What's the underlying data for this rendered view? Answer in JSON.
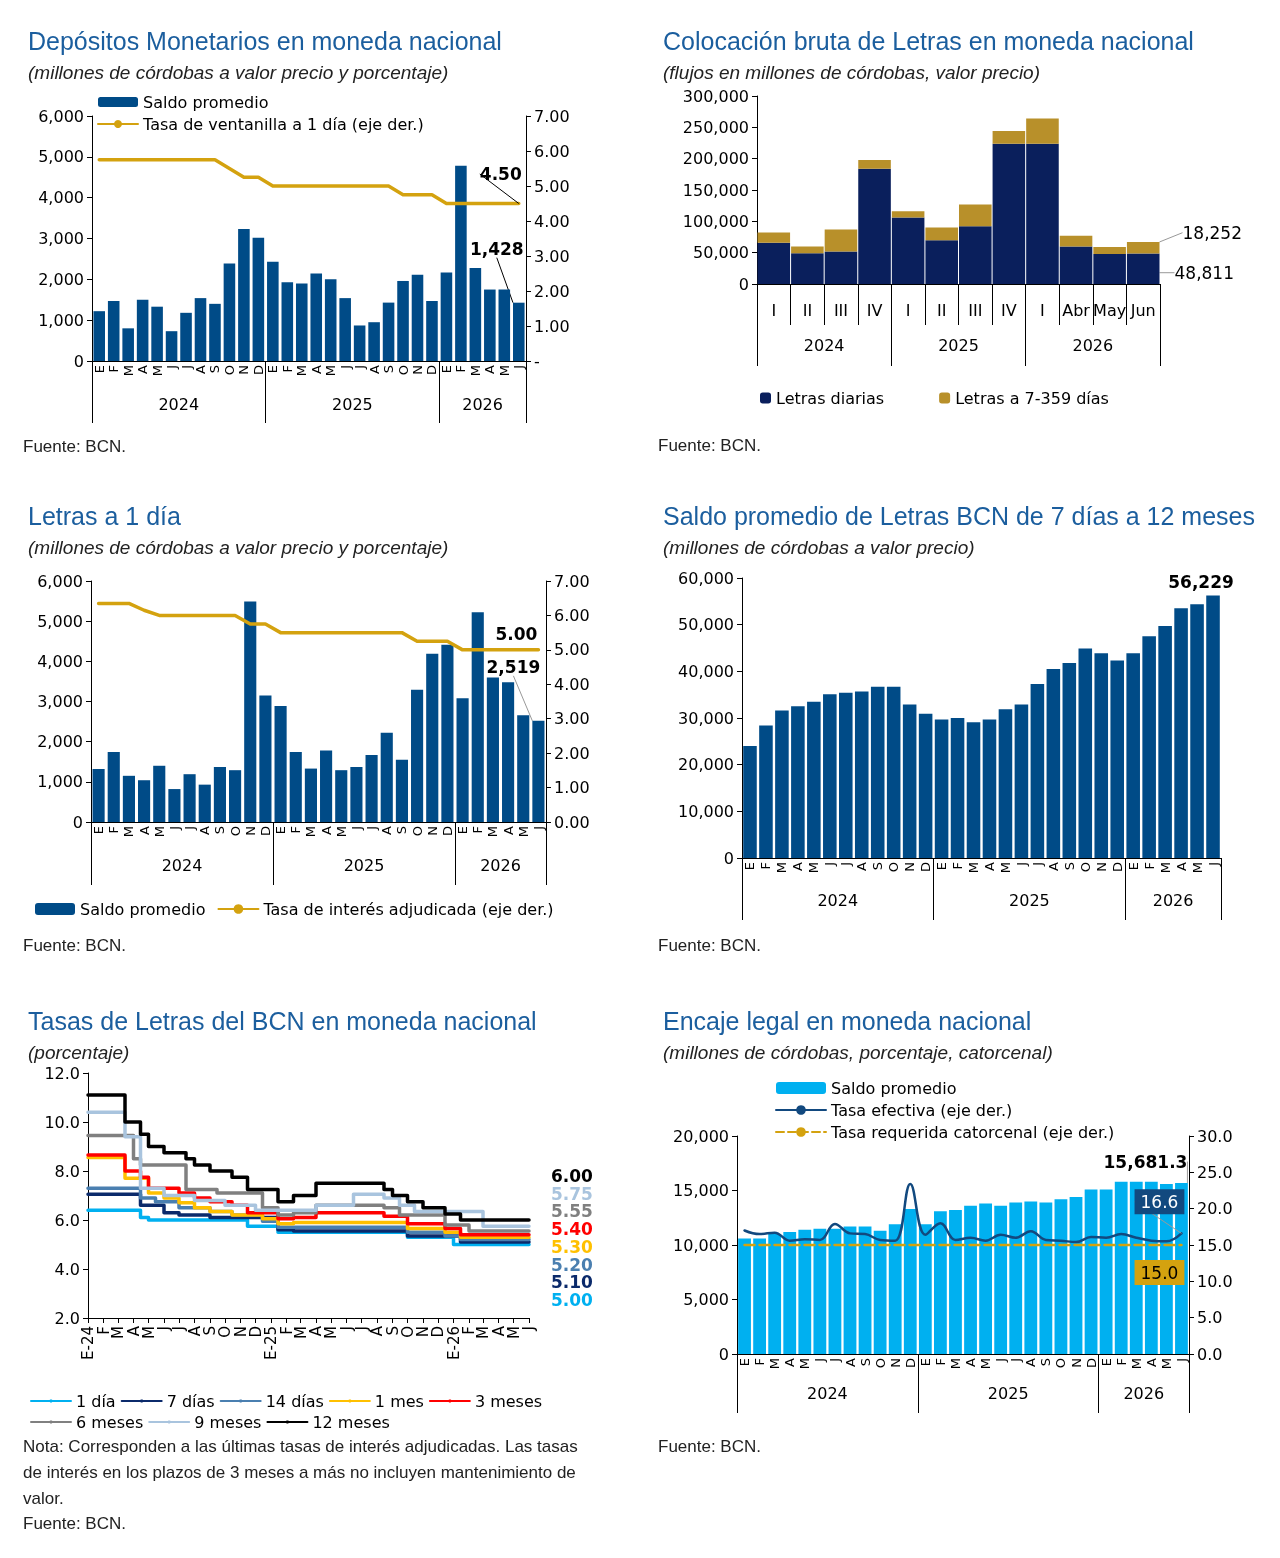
{
  "chart_data": [
    {
      "type": "bar",
      "title": "Depósitos Monetarios en moneda nacional",
      "subtitle": "(millones de córdobas a valor precio y porcentaje)",
      "categories": [
        "E",
        "F",
        "M",
        "A",
        "M",
        "J",
        "J",
        "A",
        "S",
        "O",
        "N",
        "D",
        "E",
        "F",
        "M",
        "A",
        "M",
        "J",
        "J",
        "A",
        "S",
        "O",
        "N",
        "D",
        "E",
        "F",
        "M",
        "A",
        "M",
        "J"
      ],
      "series": [
        {
          "name": "Saldo promedio",
          "color": "#004b87",
          "values": [
            1220,
            1470,
            800,
            1500,
            1330,
            730,
            1180,
            1540,
            1400,
            2390,
            3230,
            3020,
            2430,
            1930,
            1900,
            2140,
            2000,
            1540,
            870,
            950,
            1430,
            1960,
            2110,
            1470,
            2170,
            4780,
            2280,
            1750,
            1750,
            1428
          ],
          "value_labels": [
            null,
            null,
            null,
            null,
            null,
            null,
            null,
            null,
            null,
            null,
            null,
            null,
            null,
            null,
            null,
            null,
            null,
            null,
            null,
            null,
            null,
            null,
            null,
            null,
            null,
            null,
            null,
            null,
            null,
            "1,428"
          ]
        },
        {
          "name": "Tasa de ventanilla a 1 día (eje der.)",
          "type": "line",
          "axis": "y2",
          "color": "#d4a20f",
          "values": [
            5.75,
            5.75,
            5.75,
            5.75,
            5.75,
            5.75,
            5.75,
            5.75,
            5.75,
            5.5,
            5.25,
            5.25,
            5,
            5,
            5,
            5,
            5,
            5,
            5,
            5,
            5,
            4.75,
            4.75,
            4.75,
            4.5,
            4.5,
            4.5,
            4.5,
            4.5,
            4.5
          ],
          "value_labels": [
            null,
            null,
            null,
            null,
            null,
            null,
            null,
            null,
            null,
            null,
            null,
            null,
            null,
            null,
            null,
            null,
            null,
            null,
            null,
            null,
            null,
            null,
            null,
            null,
            null,
            null,
            null,
            null,
            null,
            "4.50"
          ]
        }
      ],
      "ylim": [
        0,
        6000
      ],
      "yticks": [
        {
          "value": 0,
          "label": "0"
        },
        {
          "value": 1000,
          "label": "1,000"
        },
        {
          "value": 2000,
          "label": "2,000"
        },
        {
          "value": 3000,
          "label": "3,000"
        },
        {
          "value": 4000,
          "label": "4,000"
        },
        {
          "value": 5000,
          "label": "5,000"
        },
        {
          "value": 6000,
          "label": "6,000"
        }
      ],
      "y2lim": [
        0,
        7
      ],
      "y2ticks": [
        {
          "value": 0,
          "label": "-"
        },
        {
          "value": 1,
          "label": "1.00"
        },
        {
          "value": 2,
          "label": "2.00"
        },
        {
          "value": 3,
          "label": "3.00"
        },
        {
          "value": 4,
          "label": "4.00"
        },
        {
          "value": 5,
          "label": "5.00"
        },
        {
          "value": 6,
          "label": "6.00"
        },
        {
          "value": 7,
          "label": "7.00"
        }
      ],
      "legend": "top left",
      "annotations": [
        "2024",
        "2025",
        "2026",
        "Fuente: BCN."
      ]
    },
    {
      "type": "bar",
      "title": "Colocación bruta de Letras en moneda nacional",
      "subtitle": "(flujos en millones de córdobas, valor precio)",
      "categories": [
        "I",
        "II",
        "III",
        "IV",
        "I",
        "II",
        "III",
        "IV",
        "I",
        "Abr",
        "May",
        "Jun"
      ],
      "stacked": true,
      "series": [
        {
          "name": "Letras diarias",
          "color": "#0a1f5c",
          "values": [
            66000,
            49000,
            52000,
            184000,
            106000,
            70000,
            92000,
            224000,
            224000,
            60000,
            48000,
            48811
          ],
          "value_labels": [
            null,
            null,
            null,
            null,
            null,
            null,
            null,
            null,
            null,
            null,
            null,
            "48,811"
          ]
        },
        {
          "name": "Letras a 7-359 días",
          "color": "#b8902a",
          "values": [
            16000,
            11000,
            35000,
            14000,
            10000,
            20000,
            35000,
            20000,
            40000,
            17000,
            11000,
            18252
          ],
          "value_labels": [
            null,
            null,
            null,
            null,
            null,
            null,
            null,
            null,
            null,
            null,
            null,
            "18,252"
          ]
        }
      ],
      "ylim": [
        0,
        300000
      ],
      "yticks": [
        {
          "value": 0,
          "label": "0"
        },
        {
          "value": 50000,
          "label": "50,000"
        },
        {
          "value": 100000,
          "label": "100,000"
        },
        {
          "value": 150000,
          "label": "150,000"
        },
        {
          "value": 200000,
          "label": "200,000"
        },
        {
          "value": 250000,
          "label": "250,000"
        },
        {
          "value": 300000,
          "label": "300,000"
        }
      ],
      "legend": "bottom",
      "annotations": [
        "2024",
        "2025",
        "2026",
        "Fuente: BCN."
      ]
    },
    {
      "type": "bar",
      "title": "Letras a 1 día",
      "subtitle": "(millones de córdobas a valor precio y porcentaje)",
      "categories": [
        "E",
        "F",
        "M",
        "A",
        "M",
        "J",
        "J",
        "A",
        "S",
        "O",
        "N",
        "D",
        "E",
        "F",
        "M",
        "A",
        "M",
        "J",
        "J",
        "A",
        "S",
        "O",
        "N",
        "D",
        "E",
        "F",
        "M",
        "A",
        "M",
        "J"
      ],
      "series": [
        {
          "name": "Saldo promedio",
          "color": "#004b87",
          "values": [
            1320,
            1740,
            1150,
            1040,
            1400,
            820,
            1190,
            930,
            1370,
            1290,
            5490,
            3150,
            2890,
            1740,
            1330,
            1780,
            1290,
            1370,
            1670,
            2220,
            1550,
            3290,
            4190,
            4410,
            3080,
            5220,
            3600,
            3480,
            2660,
            2519
          ],
          "value_labels": [
            null,
            null,
            null,
            null,
            null,
            null,
            null,
            null,
            null,
            null,
            null,
            null,
            null,
            null,
            null,
            null,
            null,
            null,
            null,
            null,
            null,
            null,
            null,
            null,
            null,
            null,
            null,
            null,
            null,
            "2,519"
          ]
        },
        {
          "name": "Tasa de interés adjudicada (eje der.)",
          "type": "line",
          "axis": "y2",
          "color": "#d4a20f",
          "values": [
            6.35,
            6.35,
            6.35,
            6.15,
            6,
            6,
            6,
            6,
            6,
            6,
            5.75,
            5.75,
            5.5,
            5.5,
            5.5,
            5.5,
            5.5,
            5.5,
            5.5,
            5.5,
            5.5,
            5.25,
            5.25,
            5.25,
            5,
            5,
            5,
            5,
            5,
            5
          ],
          "value_labels": [
            null,
            null,
            null,
            null,
            null,
            null,
            null,
            null,
            null,
            null,
            null,
            null,
            null,
            null,
            null,
            null,
            null,
            null,
            null,
            null,
            null,
            null,
            null,
            null,
            null,
            null,
            null,
            null,
            null,
            "5.00"
          ]
        }
      ],
      "ylim": [
        0,
        6000
      ],
      "yticks": [
        {
          "value": 0,
          "label": "0"
        },
        {
          "value": 1000,
          "label": "1,000"
        },
        {
          "value": 2000,
          "label": "2,000"
        },
        {
          "value": 3000,
          "label": "3,000"
        },
        {
          "value": 4000,
          "label": "4,000"
        },
        {
          "value": 5000,
          "label": "5,000"
        },
        {
          "value": 6000,
          "label": "6,000"
        }
      ],
      "y2lim": [
        0,
        7
      ],
      "y2ticks": [
        {
          "value": 0,
          "label": "0.00"
        },
        {
          "value": 1,
          "label": "1.00"
        },
        {
          "value": 2,
          "label": "2.00"
        },
        {
          "value": 3,
          "label": "3.00"
        },
        {
          "value": 4,
          "label": "4.00"
        },
        {
          "value": 5,
          "label": "5.00"
        },
        {
          "value": 6,
          "label": "6.00"
        },
        {
          "value": 7,
          "label": "7.00"
        }
      ],
      "legend": "bottom left",
      "annotations": [
        "2024",
        "2025",
        "2026",
        "Fuente: BCN."
      ]
    },
    {
      "type": "bar",
      "title": "Saldo promedio de Letras BCN de 7 días a 12 meses",
      "subtitle": "(millones de córdobas a valor precio)",
      "categories": [
        "E",
        "F",
        "M",
        "A",
        "M",
        "J",
        "J",
        "A",
        "S",
        "O",
        "N",
        "D",
        "E",
        "F",
        "M",
        "A",
        "M",
        "J",
        "J",
        "A",
        "S",
        "O",
        "N",
        "D",
        "E",
        "F",
        "M",
        "A",
        "M",
        "J"
      ],
      "color": "#004b87",
      "values": [
        24000,
        28400,
        31600,
        32500,
        33500,
        35100,
        35400,
        35700,
        36700,
        36700,
        32900,
        30900,
        29700,
        30000,
        29100,
        29700,
        31900,
        32900,
        37300,
        40500,
        41800,
        44900,
        43900,
        42300,
        43900,
        47500,
        49700,
        53500,
        54400,
        56229
      ],
      "value_labels": [
        null,
        null,
        null,
        null,
        null,
        null,
        null,
        null,
        null,
        null,
        null,
        null,
        null,
        null,
        null,
        null,
        null,
        null,
        null,
        null,
        null,
        null,
        null,
        null,
        null,
        null,
        null,
        null,
        null,
        "56,229"
      ],
      "ylim": [
        0,
        60000
      ],
      "yticks": [
        {
          "value": 0,
          "label": "0"
        },
        {
          "value": 10000,
          "label": "10,000"
        },
        {
          "value": 20000,
          "label": "20,000"
        },
        {
          "value": 30000,
          "label": "30,000"
        },
        {
          "value": 40000,
          "label": "40,000"
        },
        {
          "value": 50000,
          "label": "50,000"
        },
        {
          "value": 60000,
          "label": "60,000"
        }
      ],
      "annotations": [
        "2024",
        "2025",
        "2026",
        "Fuente: BCN."
      ]
    },
    {
      "type": "step",
      "title": "Tasas de Letras del BCN en moneda nacional",
      "subtitle": "(porcentaje)",
      "series": [
        {
          "name": "1 día",
          "color": "#00b0f0",
          "x": [
            "2024-01",
            "2024-04-15",
            "2024-05",
            "2024-11-15",
            "2025-01-15",
            "2025-10",
            "2026-01",
            "2026-06"
          ],
          "values": [
            6.4,
            6.1,
            6.0,
            5.75,
            5.5,
            5.3,
            5.0,
            5.0
          ],
          "value_labels": [
            null,
            null,
            null,
            null,
            null,
            null,
            null,
            "5.00"
          ]
        },
        {
          "name": "7 días",
          "color": "#0b2a6b",
          "x": [
            "2024-01",
            "2024-04-15",
            "2024-06",
            "2024-07",
            "2024-09",
            "2025-01-15",
            "2025-02-15",
            "2025-10",
            "2026-01-15",
            "2026-06"
          ],
          "values": [
            7.05,
            6.6,
            6.3,
            6.2,
            6.1,
            5.6,
            5.55,
            5.35,
            5.1,
            5.1
          ],
          "value_labels": [
            null,
            null,
            null,
            null,
            null,
            null,
            null,
            null,
            null,
            "5.10"
          ]
        },
        {
          "name": "14 días",
          "color": "#4a7fb0",
          "x": [
            "2024-01",
            "2024-04-15",
            "2024-05-15",
            "2024-07",
            "2024-09",
            "2024-10-15",
            "2024-12-15",
            "2025-01-15",
            "2025-10",
            "2025-12-15",
            "2026-01-15",
            "2026-06"
          ],
          "values": [
            7.3,
            6.9,
            6.75,
            6.5,
            6.35,
            6.2,
            5.95,
            5.7,
            5.5,
            5.35,
            5.2,
            5.2
          ],
          "value_labels": [
            null,
            null,
            null,
            null,
            null,
            null,
            null,
            null,
            null,
            null,
            null,
            "5.20"
          ]
        },
        {
          "name": "1 mes",
          "color": "#ffc000",
          "x": [
            "2024-01",
            "2024-03-15",
            "2024-05",
            "2024-06",
            "2024-07",
            "2024-08",
            "2024-09",
            "2024-10-15",
            "2024-12-15",
            "2025-01-15",
            "2025-02-15",
            "2025-10",
            "2025-12-15",
            "2026-01-15",
            "2026-06"
          ],
          "values": [
            8.55,
            7.7,
            7.1,
            6.9,
            6.7,
            6.5,
            6.35,
            6.2,
            6.05,
            5.85,
            5.9,
            5.65,
            5.5,
            5.3,
            5.3
          ],
          "value_labels": [
            null,
            null,
            null,
            null,
            null,
            null,
            null,
            null,
            null,
            null,
            null,
            null,
            null,
            null,
            "5.30"
          ]
        },
        {
          "name": "3 meses",
          "color": "#ff0000",
          "x": [
            "2024-01",
            "2024-03-15",
            "2024-04-15",
            "2024-05",
            "2024-07",
            "2024-08",
            "2024-09",
            "2024-10-15",
            "2024-11-15",
            "2025-01-15",
            "2025-02-15",
            "2025-04",
            "2025-08-15",
            "2025-10",
            "2025-12-15",
            "2026-01-15",
            "2026-06"
          ],
          "values": [
            8.65,
            8.0,
            7.75,
            7.3,
            7.1,
            6.9,
            6.75,
            6.6,
            6.3,
            6.05,
            6.1,
            6.3,
            6.15,
            5.85,
            5.65,
            5.4,
            5.4
          ],
          "value_labels": [
            null,
            null,
            null,
            null,
            null,
            null,
            null,
            null,
            null,
            null,
            null,
            null,
            null,
            null,
            null,
            null,
            "5.40"
          ]
        },
        {
          "name": "6 meses",
          "color": "#808080",
          "x": [
            "2024-01",
            "2024-04",
            "2024-04-15",
            "2024-07-15",
            "2024-09-15",
            "2024-12-15",
            "2025-01-15",
            "2025-02-15",
            "2025-04",
            "2025-08-15",
            "2025-09-15",
            "2025-12-15",
            "2026-02",
            "2026-06"
          ],
          "values": [
            9.45,
            8.5,
            8.25,
            7.25,
            7.1,
            6.5,
            6.2,
            6.3,
            6.6,
            6.5,
            6.2,
            5.8,
            5.55,
            5.55
          ],
          "value_labels": [
            null,
            null,
            null,
            null,
            null,
            null,
            null,
            null,
            null,
            null,
            null,
            null,
            null,
            "5.55"
          ]
        },
        {
          "name": "9 meses",
          "color": "#a9c4de",
          "x": [
            "2024-01",
            "2024-03-15",
            "2024-04-15",
            "2024-06",
            "2024-08",
            "2024-10",
            "2024-12",
            "2025-04",
            "2025-06-15",
            "2025-08-15",
            "2025-09-15",
            "2025-10-15",
            "2026-03",
            "2026-06"
          ],
          "values": [
            10.4,
            9.4,
            7.3,
            7.0,
            6.8,
            6.6,
            6.4,
            6.6,
            7.05,
            6.9,
            6.6,
            6.35,
            5.75,
            5.75
          ],
          "value_labels": [
            null,
            null,
            null,
            null,
            null,
            null,
            null,
            null,
            null,
            null,
            null,
            null,
            null,
            "5.75"
          ]
        },
        {
          "name": "12 meses",
          "color": "#000000",
          "x": [
            "2024-01",
            "2024-03-15",
            "2024-04-15",
            "2024-05",
            "2024-06",
            "2024-07-15",
            "2024-08",
            "2024-09",
            "2024-10-15",
            "2024-11-15",
            "2025-01-15",
            "2025-02-15",
            "2025-04",
            "2025-08-15",
            "2025-09",
            "2025-10",
            "2025-11",
            "2025-12-15",
            "2026-01-15",
            "2026-06"
          ],
          "values": [
            11.1,
            10.0,
            9.5,
            9.0,
            8.75,
            8.5,
            8.25,
            8.0,
            7.75,
            7.25,
            6.75,
            7.0,
            7.5,
            7.25,
            7.0,
            6.75,
            6.5,
            6.25,
            6.0,
            6.0
          ],
          "value_labels": [
            null,
            null,
            null,
            null,
            null,
            null,
            null,
            null,
            null,
            null,
            null,
            null,
            null,
            null,
            null,
            null,
            null,
            null,
            null,
            "6.00"
          ]
        }
      ],
      "xlim": [
        "2024-01",
        "2026-06"
      ],
      "xticks": [
        {
          "value": "2024-01",
          "label": "E-24"
        },
        {
          "value": "2024-02",
          "label": "F"
        },
        {
          "value": "2024-03",
          "label": "M"
        },
        {
          "value": "2024-04",
          "label": "A"
        },
        {
          "value": "2024-05",
          "label": "M"
        },
        {
          "value": "2024-06",
          "label": "J"
        },
        {
          "value": "2024-07",
          "label": "J"
        },
        {
          "value": "2024-08",
          "label": "A"
        },
        {
          "value": "2024-09",
          "label": "S"
        },
        {
          "value": "2024-10",
          "label": "O"
        },
        {
          "value": "2024-11",
          "label": "N"
        },
        {
          "value": "2024-12",
          "label": "D"
        },
        {
          "value": "2025-01",
          "label": "E-25"
        },
        {
          "value": "2025-02",
          "label": "F"
        },
        {
          "value": "2025-03",
          "label": "M"
        },
        {
          "value": "2025-04",
          "label": "A"
        },
        {
          "value": "2025-05",
          "label": "M"
        },
        {
          "value": "2025-06",
          "label": "J"
        },
        {
          "value": "2025-07",
          "label": "J"
        },
        {
          "value": "2025-08",
          "label": "A"
        },
        {
          "value": "2025-09",
          "label": "S"
        },
        {
          "value": "2025-10",
          "label": "O"
        },
        {
          "value": "2025-11",
          "label": "N"
        },
        {
          "value": "2025-12",
          "label": "D"
        },
        {
          "value": "2026-01",
          "label": "E-26"
        },
        {
          "value": "2026-02",
          "label": "F"
        },
        {
          "value": "2026-03",
          "label": "M"
        },
        {
          "value": "2026-04",
          "label": "A"
        },
        {
          "value": "2026-05",
          "label": "M"
        },
        {
          "value": "2026-06",
          "label": "J"
        }
      ],
      "ylim": [
        2,
        12
      ],
      "yticks": [
        {
          "value": 2,
          "label": "2.0"
        },
        {
          "value": 4,
          "label": "4.0"
        },
        {
          "value": 6,
          "label": "6.0"
        },
        {
          "value": 8,
          "label": "8.0"
        },
        {
          "value": 10,
          "label": "10.0"
        },
        {
          "value": 12,
          "label": "12.0"
        }
      ],
      "legend": "bottom",
      "annotations": [
        "Nota: Corresponden a las últimas tasas de interés adjudicadas. Las tasas de interés en los plazos de 3 meses a más no incluyen mantenimiento de valor.",
        "Fuente: BCN."
      ]
    },
    {
      "type": "bar",
      "title": "Encaje legal en moneda nacional",
      "subtitle": "(millones de córdobas, porcentaje, catorcenal)",
      "categories": [
        "E",
        "F",
        "M",
        "A",
        "M",
        "J",
        "J",
        "A",
        "S",
        "O",
        "N",
        "D",
        "E",
        "F",
        "M",
        "A",
        "M",
        "J",
        "J",
        "A",
        "S",
        "O",
        "N",
        "D",
        "E",
        "F",
        "M",
        "A",
        "M",
        "J"
      ],
      "series": [
        {
          "name": "Saldo promedio",
          "color": "#00b0f0",
          "values": [
            10600,
            10600,
            11000,
            11200,
            11400,
            11500,
            11500,
            11700,
            11700,
            11300,
            11900,
            13300,
            11900,
            13100,
            13200,
            13600,
            13800,
            13600,
            13900,
            14000,
            13900,
            14200,
            14400,
            15100,
            15100,
            15800,
            15800,
            15800,
            15600,
            15681.3
          ],
          "value_labels": [
            null,
            null,
            null,
            null,
            null,
            null,
            null,
            null,
            null,
            null,
            null,
            null,
            null,
            null,
            null,
            null,
            null,
            null,
            null,
            null,
            null,
            null,
            null,
            null,
            null,
            null,
            null,
            null,
            null,
            "15,681.3"
          ]
        },
        {
          "name": "Tasa efectiva (eje der.)",
          "type": "line",
          "axis": "y2",
          "color": "#12497f",
          "values": [
            17.0,
            16.5,
            16.7,
            15.6,
            15.8,
            15.7,
            17.9,
            16.6,
            16.5,
            15.7,
            15.6,
            23.4,
            16.4,
            18.0,
            15.7,
            16.0,
            15.6,
            16.4,
            16.0,
            16.9,
            15.7,
            15.6,
            15.4,
            16.1,
            16.0,
            16.5,
            16.0,
            15.6,
            15.5,
            16.6
          ],
          "value_labels": [
            null,
            null,
            null,
            null,
            null,
            null,
            null,
            null,
            null,
            null,
            null,
            null,
            null,
            null,
            null,
            null,
            null,
            null,
            null,
            null,
            null,
            null,
            null,
            null,
            null,
            null,
            null,
            null,
            null,
            "16.6"
          ]
        },
        {
          "name": "Tasa requerida catorcenal (eje der.)",
          "type": "line",
          "axis": "y2",
          "color": "#d4a20f",
          "line_style": "dashed",
          "values": [
            15,
            15,
            15,
            15,
            15,
            15,
            15,
            15,
            15,
            15,
            15,
            15,
            15,
            15,
            15,
            15,
            15,
            15,
            15,
            15,
            15,
            15,
            15,
            15,
            15,
            15,
            15,
            15,
            15,
            15
          ],
          "value_labels": [
            null,
            null,
            null,
            null,
            null,
            null,
            null,
            null,
            null,
            null,
            null,
            null,
            null,
            null,
            null,
            null,
            null,
            null,
            null,
            null,
            null,
            null,
            null,
            null,
            null,
            null,
            null,
            null,
            null,
            "15.0"
          ]
        }
      ],
      "ylim": [
        0,
        20000
      ],
      "yticks": [
        {
          "value": 0,
          "label": "0"
        },
        {
          "value": 5000,
          "label": "5,000"
        },
        {
          "value": 10000,
          "label": "10,000"
        },
        {
          "value": 15000,
          "label": "15,000"
        },
        {
          "value": 20000,
          "label": "20,000"
        }
      ],
      "y2lim": [
        0,
        30
      ],
      "y2ticks": [
        {
          "value": 0,
          "label": "0.0"
        },
        {
          "value": 5,
          "label": "5.0"
        },
        {
          "value": 10,
          "label": "10.0"
        },
        {
          "value": 15,
          "label": "15.0"
        },
        {
          "value": 20,
          "label": "20.0"
        },
        {
          "value": 25,
          "label": "25.0"
        },
        {
          "value": 30,
          "label": "30.0"
        }
      ],
      "legend": "top",
      "annotations": [
        "2024",
        "2025",
        "2026",
        "Fuente: BCN."
      ]
    }
  ]
}
